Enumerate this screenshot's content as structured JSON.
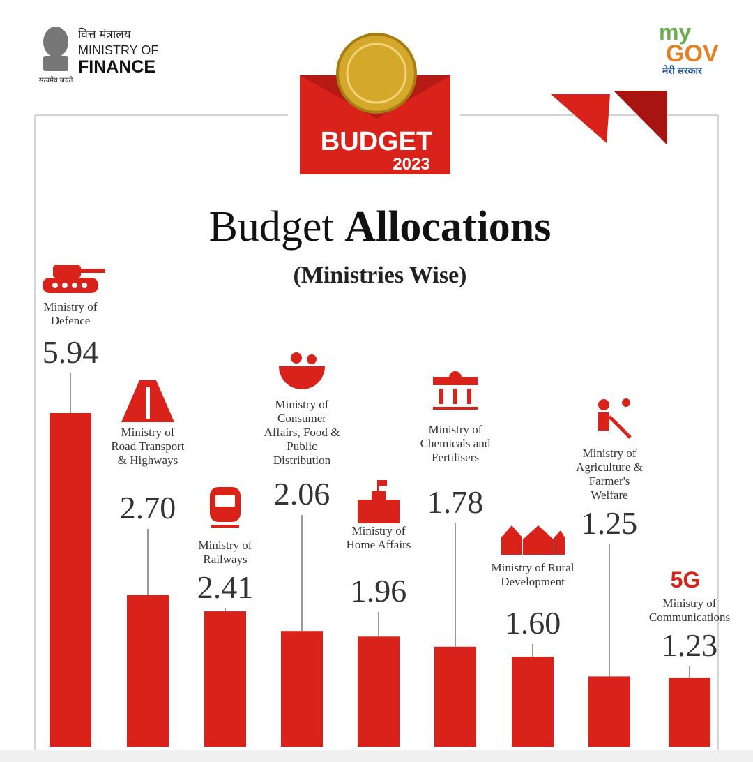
{
  "header": {
    "emblem_hindi": "वित्त मंत्रालय",
    "ministry_line1": "MINISTRY OF",
    "ministry_line2": "FINANCE",
    "motto": "सत्यमेव जयते",
    "mygov_my": "my",
    "mygov_gov": "GOV",
    "mygov_hindi": "मेरी सरकार",
    "badge_word": "BUDGET",
    "badge_year": "2023"
  },
  "chart_data": {
    "type": "bar",
    "title_parts": [
      "Budget",
      "Allocations"
    ],
    "subtitle": "(Ministries Wise)",
    "categories": [
      "Ministry of Defence",
      "Ministry of Road Transport & Highways",
      "Ministry of Railways",
      "Ministry of Consumer Affairs, Food & Public Distribution",
      "Ministry of Home Affairs",
      "Ministry of Chemicals and Fertilisers",
      "Ministry of Rural Development",
      "Ministry of Agriculture & Farmer's Welfare",
      "Ministry of Communications"
    ],
    "values": [
      5.94,
      2.7,
      2.41,
      2.06,
      1.96,
      1.78,
      1.6,
      1.25,
      1.23
    ],
    "value_labels": [
      "5.94",
      "2.70",
      "2.41",
      "2.06",
      "1.96",
      "1.78",
      "1.60",
      "1.25",
      "1.23"
    ],
    "annotations": [
      "5G"
    ],
    "color": "#d9221a"
  }
}
